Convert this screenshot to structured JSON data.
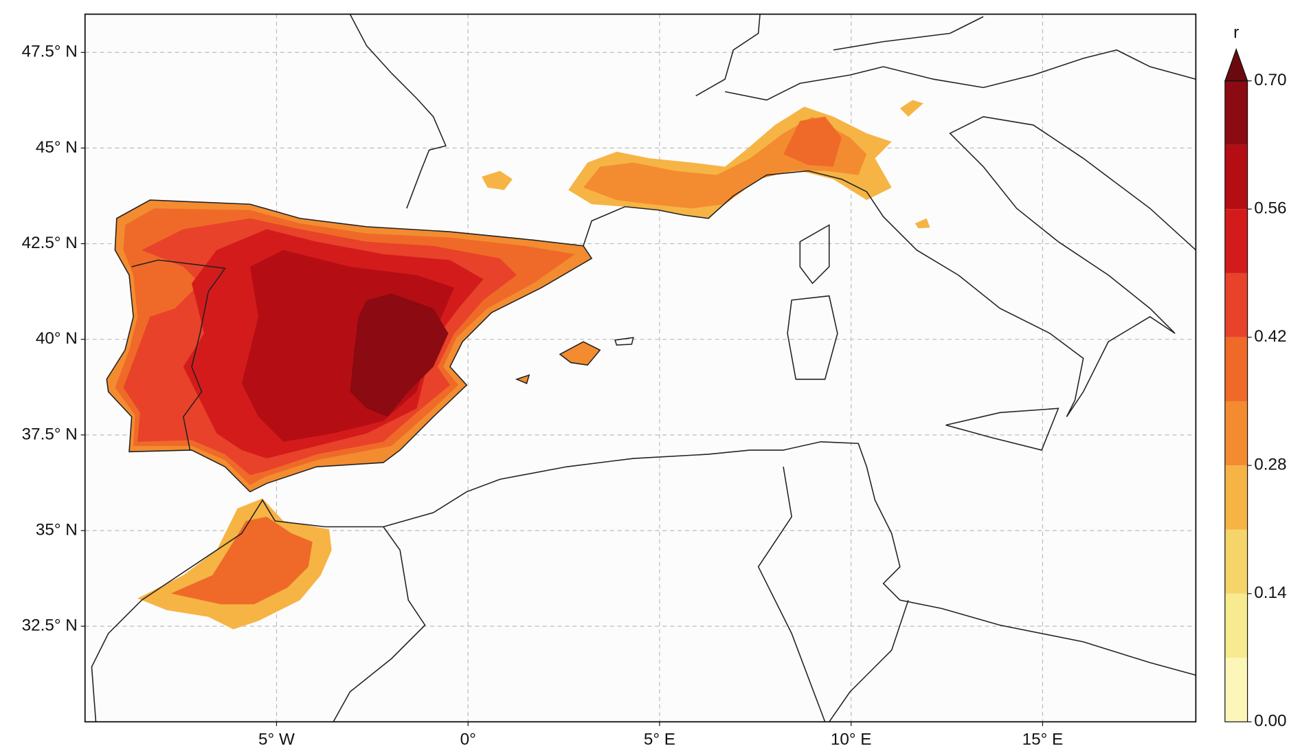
{
  "map": {
    "xlim": [
      -10,
      19
    ],
    "ylim": [
      30,
      48.5
    ],
    "xticks": [
      {
        "value": -5,
        "label": "5° W"
      },
      {
        "value": 0,
        "label": "0°"
      },
      {
        "value": 5,
        "label": "5° E"
      },
      {
        "value": 10,
        "label": "10° E"
      },
      {
        "value": 15,
        "label": "15° E"
      }
    ],
    "yticks": [
      {
        "value": 32.5,
        "label": "32.5° N"
      },
      {
        "value": 35,
        "label": "35° N"
      },
      {
        "value": 37.5,
        "label": "37.5° N"
      },
      {
        "value": 40,
        "label": "40° N"
      },
      {
        "value": 42.5,
        "label": "42.5° N"
      },
      {
        "value": 45,
        "label": "45° N"
      },
      {
        "value": 47.5,
        "label": "47.5° N"
      }
    ],
    "grid": true,
    "colorbar": {
      "label": "r",
      "levels": [
        0,
        0.07,
        0.14,
        0.21,
        0.28,
        0.35,
        0.42,
        0.49,
        0.56,
        0.63,
        0.7
      ],
      "colors": [
        "#fcf6b8",
        "#f8ea8e",
        "#f5d56a",
        "#f6b445",
        "#f38c30",
        "#ef6a28",
        "#e8422a",
        "#d41b1b",
        "#b40e14",
        "#8c0a12"
      ],
      "extend_color": "#6a0a0f",
      "ticks": [
        {
          "value": 0,
          "label": "0.00"
        },
        {
          "value": 0.14,
          "label": "0.14"
        },
        {
          "value": 0.28,
          "label": "0.28"
        },
        {
          "value": 0.42,
          "label": "0.42"
        },
        {
          "value": 0.56,
          "label": "0.56"
        },
        {
          "value": 0.7,
          "label": "0.70"
        }
      ]
    }
  }
}
